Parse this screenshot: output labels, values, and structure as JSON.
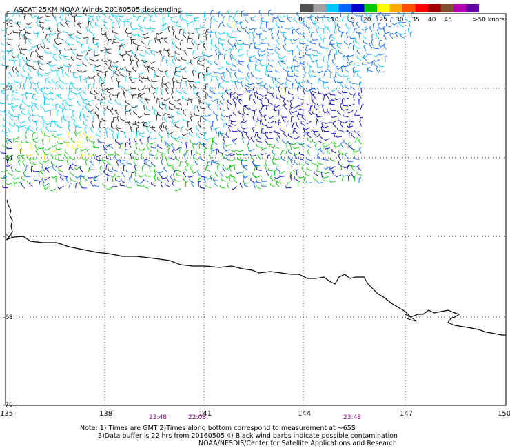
{
  "title": "ASCAT 25KM NOAA Winds 20160505 descending",
  "colorbar": {
    "labels": [
      "0",
      "5",
      "10",
      "15",
      "20",
      "25",
      "30",
      "35",
      "40",
      "45",
      ">50 knots"
    ],
    "colors": [
      "#505050",
      "#a0a0a0",
      "#00c8ff",
      "#0064ff",
      "#0000c8",
      "#00c800",
      "#ffff00",
      "#ffaa00",
      "#ff5000",
      "#ff0000",
      "#a00000",
      "#805030",
      "#b000b0",
      "#6000a0"
    ]
  },
  "lat_labels": [
    "-60",
    "-62",
    "-64",
    "-66",
    "-68",
    "-70"
  ],
  "lon_labels": [
    "135",
    "138",
    "141",
    "144",
    "147",
    "150"
  ],
  "time_labels": [
    "23:48",
    "22:08",
    "23:48"
  ],
  "notes": {
    "line1": "Note: 1) Times are GMT  2)Times along bottom correspond to measurement at ~65S",
    "line2": "3)Data buffer is 22 hrs from 20160505  4) Black wind barbs indicate possible contamination",
    "line3": "NOAA/NESDIS/Center for Satellite Applications and Research"
  }
}
